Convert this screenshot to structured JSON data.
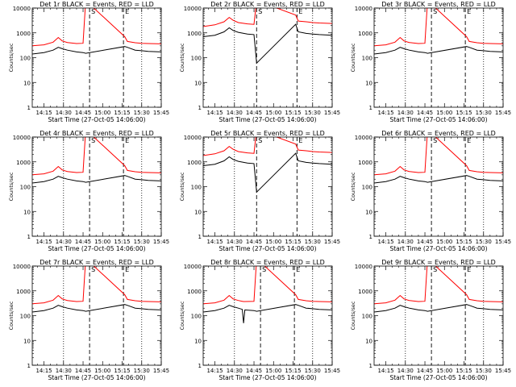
{
  "common": {
    "xlabel": "Start Time (27-Oct-05 14:06:00)",
    "ylabel": "Counts/sec",
    "xtick_labels": [
      "14:15",
      "14:30",
      "14:45",
      "15:00",
      "15:15",
      "15:30",
      "15:45"
    ],
    "ytick_labels": [
      "1",
      "10",
      "100",
      "1000",
      "10000"
    ]
  },
  "chart_data": [
    {
      "type": "line",
      "title": "Det 1r BLACK = Events, RED = LLD",
      "x": [
        "14:06",
        "14:15",
        "14:22",
        "14:26",
        "14:29",
        "14:33",
        "14:40",
        "14:45",
        "14:47",
        "15:17",
        "15:19",
        "15:25",
        "15:30",
        "15:35",
        "15:45"
      ],
      "ylim": [
        1,
        10000
      ],
      "yscale": "log",
      "series": [
        {
          "color": "#000000",
          "values": [
            140,
            160,
            200,
            260,
            230,
            200,
            170,
            160,
            150,
            280,
            260,
            200,
            190,
            180,
            170
          ]
        },
        {
          "color": "#ff0000",
          "values": [
            300,
            330,
            420,
            650,
            470,
            410,
            370,
            380,
            20000,
            700,
            450,
            400,
            380,
            370,
            360
          ]
        }
      ],
      "markers": [
        {
          "label": "S",
          "x": "14:50"
        },
        {
          "label": "E",
          "x": "15:16"
        }
      ]
    },
    {
      "type": "line",
      "title": "Det 2r BLACK = Events, RED = LLD",
      "x": [
        "14:06",
        "14:15",
        "14:22",
        "14:26",
        "14:29",
        "14:33",
        "14:40",
        "14:45",
        "14:47",
        "15:17",
        "15:19",
        "15:25",
        "15:30",
        "15:35",
        "15:45"
      ],
      "ylim": [
        1,
        10000
      ],
      "yscale": "log",
      "series": [
        {
          "color": "#000000",
          "values": [
            700,
            800,
            1100,
            1600,
            1250,
            1050,
            900,
            850,
            60,
            2200,
            1100,
            950,
            900,
            850,
            800
          ]
        },
        {
          "color": "#ff0000",
          "values": [
            1800,
            2100,
            2800,
            4200,
            3200,
            2600,
            2300,
            2200,
            20000,
            5200,
            3000,
            2800,
            2600,
            2500,
            2400
          ]
        }
      ],
      "markers": [
        {
          "label": "S",
          "x": "14:47"
        },
        {
          "label": "E",
          "x": "15:18"
        }
      ]
    },
    {
      "type": "line",
      "title": "Det 3r BLACK = Events, RED = LLD",
      "x": [
        "14:06",
        "14:15",
        "14:22",
        "14:26",
        "14:29",
        "14:33",
        "14:40",
        "14:45",
        "14:47",
        "15:17",
        "15:19",
        "15:25",
        "15:30",
        "15:35",
        "15:45"
      ],
      "ylim": [
        1,
        10000
      ],
      "yscale": "log",
      "series": [
        {
          "color": "#000000",
          "values": [
            140,
            160,
            200,
            260,
            230,
            200,
            170,
            160,
            150,
            280,
            260,
            200,
            190,
            180,
            170
          ]
        },
        {
          "color": "#ff0000",
          "values": [
            300,
            330,
            420,
            650,
            470,
            410,
            370,
            380,
            20000,
            700,
            450,
            400,
            380,
            370,
            360
          ]
        }
      ],
      "markers": [
        {
          "label": "S",
          "x": "14:50"
        },
        {
          "label": "E",
          "x": "15:16"
        }
      ]
    },
    {
      "type": "line",
      "title": "Det 4r BLACK = Events, RED = LLD",
      "x": [
        "14:06",
        "14:15",
        "14:22",
        "14:26",
        "14:29",
        "14:33",
        "14:40",
        "14:45",
        "14:47",
        "15:17",
        "15:19",
        "15:25",
        "15:30",
        "15:35",
        "15:45"
      ],
      "ylim": [
        1,
        10000
      ],
      "yscale": "log",
      "series": [
        {
          "color": "#000000",
          "values": [
            140,
            160,
            200,
            260,
            230,
            200,
            170,
            160,
            150,
            280,
            260,
            200,
            190,
            180,
            170
          ]
        },
        {
          "color": "#ff0000",
          "values": [
            300,
            330,
            420,
            650,
            470,
            410,
            370,
            380,
            20000,
            700,
            450,
            400,
            380,
            370,
            360
          ]
        }
      ],
      "markers": [
        {
          "label": "S",
          "x": "14:50"
        },
        {
          "label": "E",
          "x": "15:16"
        }
      ]
    },
    {
      "type": "line",
      "title": "Det 5r BLACK = Events, RED = LLD",
      "x": [
        "14:06",
        "14:15",
        "14:22",
        "14:26",
        "14:29",
        "14:33",
        "14:40",
        "14:45",
        "14:47",
        "15:17",
        "15:19",
        "15:25",
        "15:30",
        "15:35",
        "15:45"
      ],
      "ylim": [
        1,
        10000
      ],
      "yscale": "log",
      "series": [
        {
          "color": "#000000",
          "values": [
            700,
            800,
            1100,
            1600,
            1250,
            1050,
            900,
            850,
            60,
            2200,
            1100,
            950,
            900,
            850,
            800
          ]
        },
        {
          "color": "#ff0000",
          "values": [
            1800,
            2100,
            2800,
            4200,
            3200,
            2600,
            2300,
            2200,
            20000,
            5200,
            3000,
            2800,
            2600,
            2500,
            2400
          ]
        }
      ],
      "markers": [
        {
          "label": "S",
          "x": "14:47"
        },
        {
          "label": "E",
          "x": "15:18"
        }
      ]
    },
    {
      "type": "line",
      "title": "Det 6r BLACK = Events, RED = LLD",
      "x": [
        "14:06",
        "14:15",
        "14:22",
        "14:26",
        "14:29",
        "14:33",
        "14:40",
        "14:45",
        "14:47",
        "15:17",
        "15:19",
        "15:25",
        "15:30",
        "15:35",
        "15:45"
      ],
      "ylim": [
        1,
        10000
      ],
      "yscale": "log",
      "series": [
        {
          "color": "#000000",
          "values": [
            140,
            160,
            200,
            260,
            230,
            200,
            170,
            160,
            150,
            280,
            260,
            200,
            190,
            180,
            170
          ]
        },
        {
          "color": "#ff0000",
          "values": [
            300,
            330,
            420,
            650,
            470,
            410,
            370,
            380,
            20000,
            700,
            450,
            400,
            380,
            370,
            360
          ]
        }
      ],
      "markers": [
        {
          "label": "S",
          "x": "14:50"
        },
        {
          "label": "E",
          "x": "15:16"
        }
      ]
    },
    {
      "type": "line",
      "title": "Det 7r BLACK = Events, RED = LLD",
      "x": [
        "14:06",
        "14:15",
        "14:22",
        "14:26",
        "14:29",
        "14:33",
        "14:40",
        "14:45",
        "14:47",
        "15:17",
        "15:19",
        "15:25",
        "15:30",
        "15:35",
        "15:45"
      ],
      "ylim": [
        1,
        10000
      ],
      "yscale": "log",
      "series": [
        {
          "color": "#000000",
          "values": [
            140,
            160,
            200,
            260,
            230,
            200,
            170,
            160,
            150,
            280,
            260,
            200,
            190,
            180,
            170
          ]
        },
        {
          "color": "#ff0000",
          "values": [
            300,
            330,
            420,
            650,
            470,
            410,
            370,
            380,
            20000,
            700,
            450,
            400,
            380,
            370,
            360
          ]
        }
      ],
      "markers": [
        {
          "label": "S",
          "x": "14:50"
        },
        {
          "label": "E",
          "x": "15:16"
        }
      ]
    },
    {
      "type": "line",
      "title": "Det 8r BLACK = Events, RED = LLD",
      "x": [
        "14:06",
        "14:15",
        "14:22",
        "14:26",
        "14:29",
        "14:33",
        "14:36",
        "14:37",
        "14:38",
        "14:45",
        "14:47",
        "15:17",
        "15:19",
        "15:25",
        "15:30",
        "15:35",
        "15:45"
      ],
      "ylim": [
        1,
        10000
      ],
      "yscale": "log",
      "series": [
        {
          "color": "#000000",
          "values": [
            140,
            160,
            200,
            260,
            230,
            200,
            180,
            50,
            170,
            160,
            150,
            280,
            260,
            200,
            190,
            180,
            170
          ]
        },
        {
          "color": "#ff0000",
          "values": [
            300,
            330,
            420,
            650,
            470,
            410,
            380,
            370,
            370,
            380,
            20000,
            700,
            450,
            400,
            380,
            370,
            360
          ]
        }
      ],
      "markers": [
        {
          "label": "S",
          "x": "14:50"
        },
        {
          "label": "E",
          "x": "15:16"
        }
      ]
    },
    {
      "type": "line",
      "title": "Det 9r BLACK = Events, RED = LLD",
      "x": [
        "14:06",
        "14:15",
        "14:22",
        "14:26",
        "14:29",
        "14:33",
        "14:40",
        "14:45",
        "14:47",
        "15:17",
        "15:19",
        "15:25",
        "15:30",
        "15:35",
        "15:45"
      ],
      "ylim": [
        1,
        10000
      ],
      "yscale": "log",
      "series": [
        {
          "color": "#000000",
          "values": [
            140,
            160,
            200,
            260,
            230,
            200,
            170,
            160,
            150,
            280,
            260,
            200,
            190,
            180,
            170
          ]
        },
        {
          "color": "#ff0000",
          "values": [
            300,
            330,
            420,
            650,
            470,
            410,
            370,
            380,
            20000,
            700,
            450,
            400,
            380,
            370,
            360
          ]
        }
      ],
      "markers": [
        {
          "label": "S",
          "x": "14:50"
        },
        {
          "label": "E",
          "x": "15:16"
        }
      ]
    }
  ]
}
